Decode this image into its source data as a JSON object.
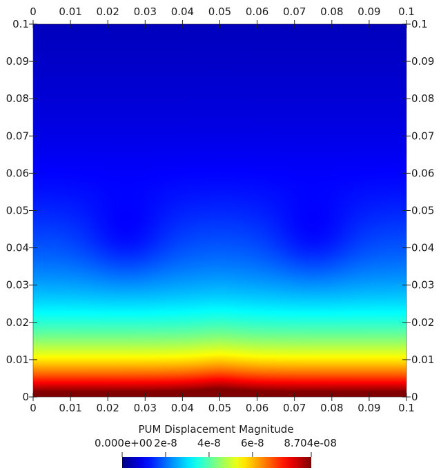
{
  "chart_data": {
    "type": "heatmap",
    "title": "",
    "xlabel": "",
    "ylabel": "",
    "xlim": [
      0,
      0.1
    ],
    "ylim": [
      0,
      0.1
    ],
    "x_ticks": [
      "0",
      "0.01",
      "0.02",
      "0.03",
      "0.04",
      "0.05",
      "0.06",
      "0.07",
      "0.08",
      "0.09",
      "0.1"
    ],
    "y_ticks": [
      "0",
      "0.01",
      "0.02",
      "0.03",
      "0.04",
      "0.05",
      "0.06",
      "0.07",
      "0.08",
      "0.09",
      "0.1"
    ],
    "field": {
      "description_of_pattern": "",
      "low_spots": [
        [
          0.025,
          0.042
        ],
        [
          0.075,
          0.042
        ]
      ],
      "max_value": 8.704e-08,
      "min_value": 0
    },
    "colorbar": {
      "title": "PUM Displacement Magnitude",
      "labels": [
        {
          "text": "0.000e+00",
          "value": 0
        },
        {
          "text": "2e-8",
          "value": 2e-08
        },
        {
          "text": "4e-8",
          "value": 4e-08
        },
        {
          "text": "6e-8",
          "value": 6e-08
        },
        {
          "text": "8.704e-08",
          "value": 8.704e-08
        }
      ],
      "colormap": "jet",
      "range": [
        0,
        8.704e-08
      ]
    }
  }
}
